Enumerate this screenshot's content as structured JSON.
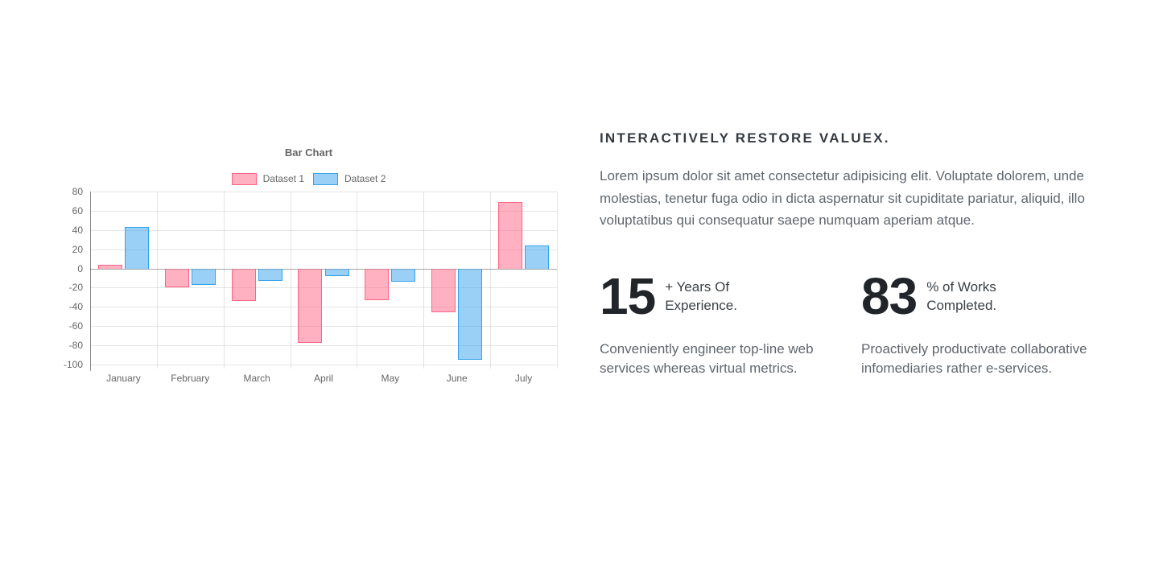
{
  "chart_data": {
    "type": "bar",
    "title": "Bar Chart",
    "categories": [
      "January",
      "February",
      "March",
      "April",
      "May",
      "June",
      "July"
    ],
    "series": [
      {
        "name": "Dataset 1",
        "values": [
          4,
          -20,
          -34,
          -77,
          -33,
          -46,
          69
        ],
        "fill": "rgba(255,99,132,0.5)",
        "border": "#ff6384"
      },
      {
        "name": "Dataset 2",
        "values": [
          43,
          -17,
          -13,
          -8,
          -14,
          -95,
          24
        ],
        "fill": "rgba(54,162,235,0.5)",
        "border": "#36a2eb"
      }
    ],
    "xlabel": "",
    "ylabel": "",
    "ylim": [
      -100,
      80
    ],
    "ytick_step": 20,
    "grid": true,
    "legend_position": "top"
  },
  "content": {
    "heading": "INTERACTIVELY RESTORE VALUEX.",
    "intro": "Lorem ipsum dolor sit amet consectetur adipisicing elit. Voluptate dolorem, unde molestias, tenetur fuga odio in dicta aspernatur sit cupiditate pariatur, aliquid, illo voluptatibus qui consequatur saepe numquam aperiam atque.",
    "stats": [
      {
        "value": "15",
        "label_line1": "+ Years Of",
        "label_line2": "Experience.",
        "description": "Conveniently engineer top-line web services whereas virtual metrics."
      },
      {
        "value": "83",
        "label_line1": "% of Works",
        "label_line2": "Completed.",
        "description": "Proactively productivate collaborative infomediaries rather e-services."
      }
    ]
  },
  "colors": {
    "heading": "#343a40",
    "body_text": "#5f666d",
    "stat_number": "#212529",
    "axis_text": "#666666",
    "grid_line": "rgba(0,0,0,0.1)",
    "zero_line": "rgba(0,0,0,0.35)",
    "dataset1_border": "#ff6384",
    "dataset2_border": "#36a2eb"
  }
}
